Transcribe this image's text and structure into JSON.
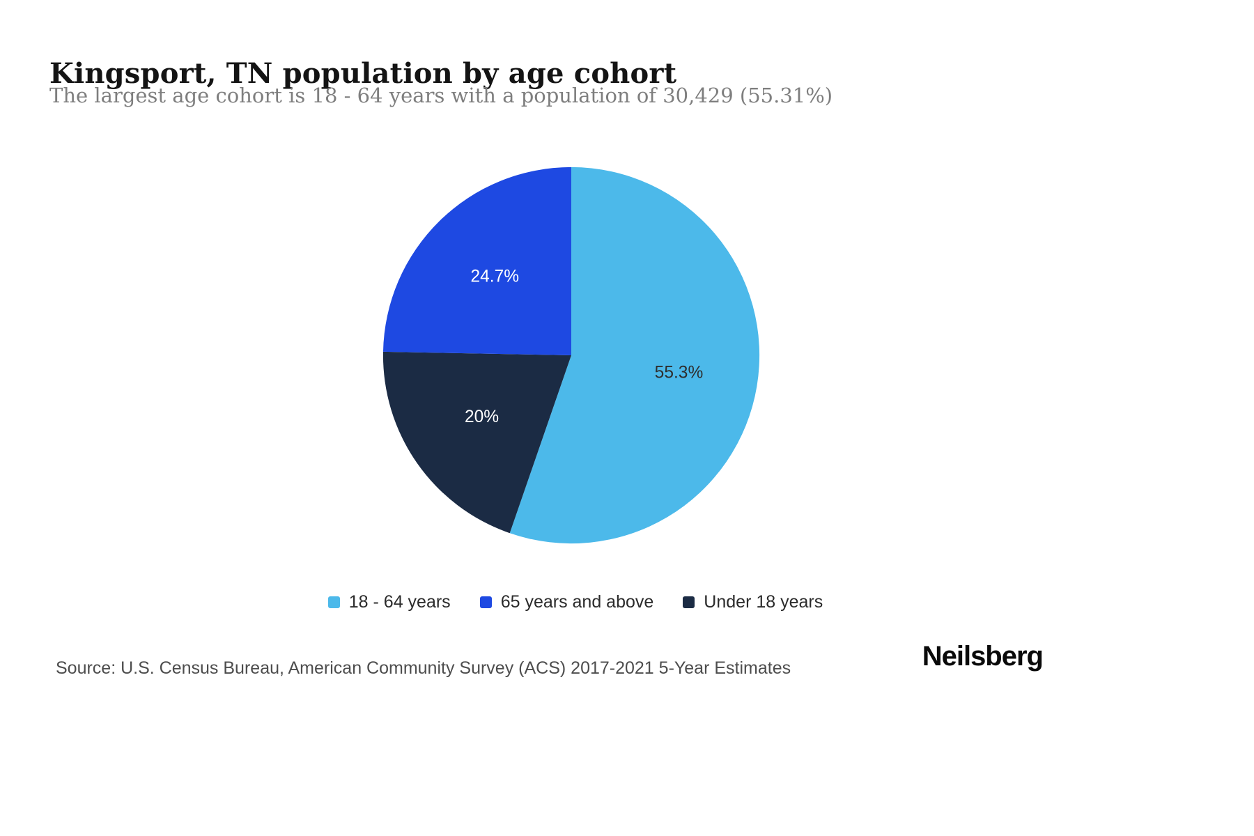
{
  "header": {
    "title": "Kingsport, TN population by age cohort",
    "subtitle": "The largest age cohort is 18 - 64 years with a population of 30,429 (55.31%)"
  },
  "chart_data": {
    "type": "pie",
    "title": "Kingsport, TN population by age cohort",
    "start_angle_deg": 0,
    "direction": "clockwise",
    "legend_position": "bottom",
    "largest_cohort": {
      "label": "18 - 64 years",
      "population": "30,429",
      "percent": "55.31%"
    },
    "slices": [
      {
        "label": "18 - 64 years",
        "value": 55.3,
        "display": "55.3%",
        "color": "#4CB9EA",
        "label_color": "#2e2e2e"
      },
      {
        "label": "Under 18 years",
        "value": 20.0,
        "display": "20%",
        "color": "#1B2B44",
        "label_color": "#ffffff"
      },
      {
        "label": "65 years and above",
        "value": 24.7,
        "display": "24.7%",
        "color": "#1E49E2",
        "label_color": "#ffffff"
      }
    ]
  },
  "legend": {
    "items": [
      {
        "label": "18 - 64 years",
        "color": "#4CB9EA"
      },
      {
        "label": "65 years and above",
        "color": "#1E49E2"
      },
      {
        "label": "Under 18 years",
        "color": "#1B2B44"
      }
    ]
  },
  "footer": {
    "source": "Source: U.S. Census Bureau, American Community Survey (ACS) 2017-2021 5-Year Estimates",
    "brand": "Neilsberg"
  }
}
